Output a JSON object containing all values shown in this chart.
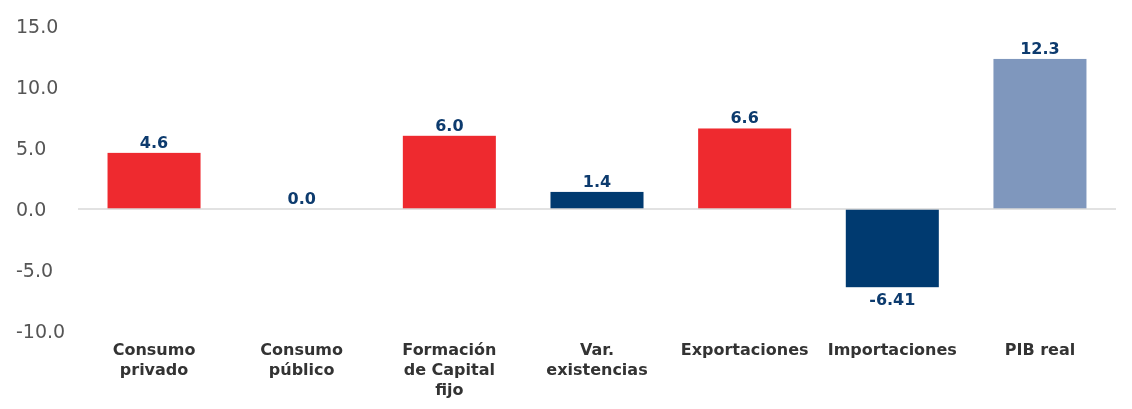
{
  "chart_data": {
    "type": "bar",
    "categories": [
      "Consumo privado",
      "Consumo público",
      "Formación de Capital fijo",
      "Var. existencias",
      "Exportaciones",
      "Importaciones",
      "PIB real"
    ],
    "values": [
      4.6,
      0.0,
      6.0,
      1.4,
      6.6,
      -6.41,
      12.3
    ],
    "colors": [
      "#ee2a2f",
      "#ee2a2f",
      "#ee2a2f",
      "#003a70",
      "#ee2a2f",
      "#003a70",
      "#7f97bd"
    ],
    "value_labels": [
      "4.6",
      "0.0",
      "6.0",
      "1.4",
      "6.6",
      "-6.41",
      "12.3"
    ],
    "ylim": [
      -10,
      15
    ],
    "yticks": [
      {
        "value": -10,
        "label": "-10.0"
      },
      {
        "value": -5,
        "label": "-5.0"
      },
      {
        "value": 0,
        "label": "0.0"
      },
      {
        "value": 5,
        "label": "5.0"
      },
      {
        "value": 10,
        "label": "10.0"
      },
      {
        "value": 15,
        "label": "15.0"
      }
    ],
    "ref_lines": [
      {
        "axis": "y",
        "value": 0,
        "color": "#d9d9d9"
      }
    ]
  }
}
